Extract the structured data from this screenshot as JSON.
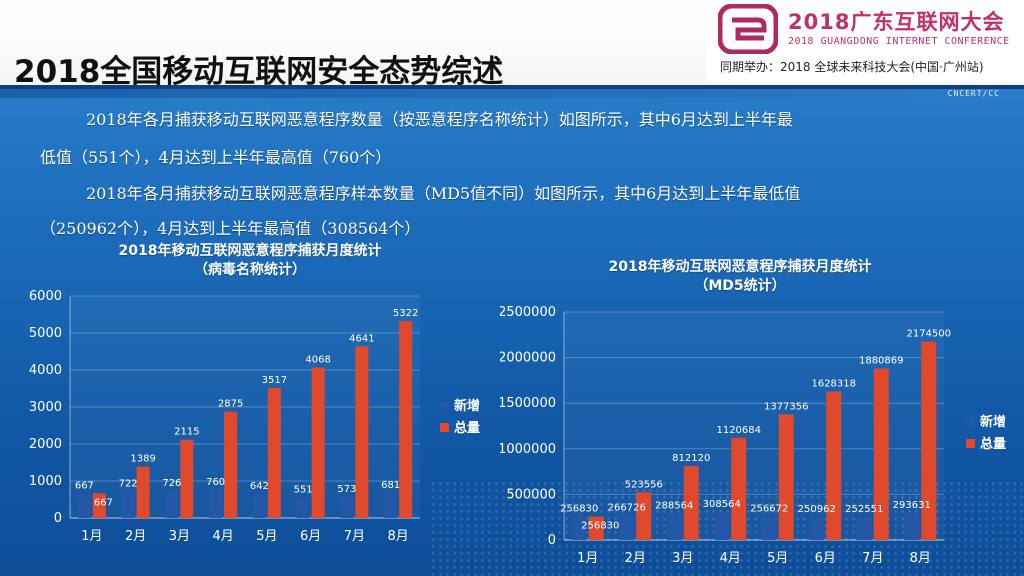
{
  "header": {
    "title": "2018全国移动互联网安全态势综述",
    "org": "CNCERT/CC",
    "conference": {
      "title": "2018广东互联网大会",
      "subtitle_en": "2018 GUANGDONG INTERNET CONFERENCE",
      "tagline": "同期举办：2018 全球未来科技大会(中国·广州站)"
    }
  },
  "paragraphs": [
    "2018年各月捕获移动互联网恶意程序数量（按恶意程序名称统计）如图所示，其中6月达到上半年最",
    "低值（551个），4月达到上半年最高值（760个）",
    "2018年各月捕获移动互联网恶意程序样本数量（MD5值不同）如图所示，其中6月达到上半年最低值",
    "（250962个），4月达到上半年最高值（308564个）"
  ],
  "colors": {
    "new": "#2457a8",
    "total": "#e0492c",
    "grid": "#ffffff"
  },
  "chart_data": [
    {
      "type": "bar",
      "title": "2018年移动互联网恶意程序捕获月度统计",
      "subtitle": "（病毒名称统计）",
      "categories": [
        "1月",
        "2月",
        "3月",
        "4月",
        "5月",
        "6月",
        "7月",
        "8月"
      ],
      "series": [
        {
          "name": "新增",
          "values": [
            667,
            722,
            726,
            760,
            642,
            551,
            573,
            681
          ]
        },
        {
          "name": "总量",
          "values": [
            667,
            1389,
            2115,
            2875,
            3517,
            4068,
            4641,
            5322
          ]
        }
      ],
      "ylim": [
        0,
        6000
      ],
      "yticks": [
        0,
        1000,
        2000,
        3000,
        4000,
        5000,
        6000
      ],
      "legend": "right",
      "grid": true
    },
    {
      "type": "bar",
      "title": "2018年移动互联网恶意程序捕获月度统计",
      "subtitle": "（MD5统计）",
      "categories": [
        "1月",
        "2月",
        "3月",
        "4月",
        "5月",
        "6月",
        "7月",
        "8月"
      ],
      "series": [
        {
          "name": "新增",
          "values": [
            256830,
            266726,
            288564,
            308564,
            256672,
            250962,
            252551,
            293631
          ]
        },
        {
          "name": "总量",
          "values": [
            256830,
            523556,
            812120,
            1120684,
            1377356,
            1628318,
            1880869,
            2174500
          ]
        }
      ],
      "ylim": [
        0,
        2500000
      ],
      "yticks": [
        0,
        500000,
        1000000,
        1500000,
        2000000,
        2500000
      ],
      "legend": "right",
      "grid": true
    }
  ]
}
